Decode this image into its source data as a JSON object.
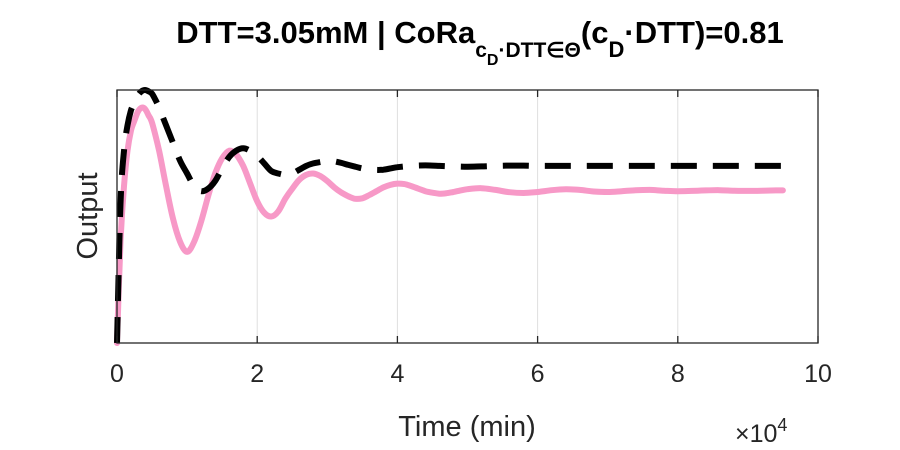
{
  "chart_data": {
    "type": "line",
    "title": {
      "main": "DTT=3.05mM | CoRa",
      "sub1": "c",
      "sub1_sub": "D",
      "sub2": "·DTT∈Θ",
      "mid": "(c",
      "mid_sub": "D",
      "tail": "·DTT)=0.81"
    },
    "xlabel": "Time (min)",
    "ylabel": "Output",
    "x_multiplier": {
      "times": "×10",
      "exponent": "4"
    },
    "xlim": [
      0,
      100000
    ],
    "ylim": [
      0,
      1.0
    ],
    "xticks": [
      0,
      20000,
      40000,
      60000,
      80000,
      100000
    ],
    "xtick_labels": [
      "0",
      "2",
      "4",
      "6",
      "8",
      "10"
    ],
    "grid_x": true,
    "grid_y": false,
    "colors": {
      "pink": "#F799C7",
      "black": "#000000",
      "grid": "#DFDFDF",
      "axis": "#262626"
    },
    "series": [
      {
        "style": "solid",
        "color": "#F799C7",
        "x": [
          0,
          500,
          1000,
          1500,
          2000,
          2500,
          3000,
          3500,
          4000,
          4500,
          5000,
          6000,
          7000,
          8000,
          9000,
          10000,
          11000,
          12000,
          13000,
          14000,
          15000,
          16000,
          17000,
          18000,
          19000,
          20000,
          21000,
          22000,
          23000,
          24000,
          25000,
          26000,
          27000,
          28000,
          29000,
          30000,
          31000,
          32000,
          33000,
          34000,
          35000,
          36000,
          37000,
          38000,
          39000,
          40000,
          41000,
          42000,
          43000,
          44000,
          45000,
          46000,
          47000,
          48000,
          49000,
          50000,
          52000,
          54000,
          56000,
          58000,
          60000,
          62000,
          64000,
          66000,
          68000,
          70000,
          72000,
          74000,
          76000,
          78000,
          80000,
          82000,
          84000,
          86000,
          88000,
          90000,
          92000,
          94000,
          95000
        ],
        "values": [
          0,
          0.4,
          0.62,
          0.76,
          0.84,
          0.88,
          0.915,
          0.93,
          0.925,
          0.9,
          0.87,
          0.76,
          0.62,
          0.49,
          0.4,
          0.36,
          0.4,
          0.48,
          0.58,
          0.67,
          0.73,
          0.76,
          0.745,
          0.7,
          0.63,
          0.56,
          0.515,
          0.5,
          0.52,
          0.57,
          0.61,
          0.645,
          0.665,
          0.67,
          0.66,
          0.64,
          0.615,
          0.595,
          0.58,
          0.57,
          0.572,
          0.585,
          0.6,
          0.615,
          0.625,
          0.63,
          0.628,
          0.62,
          0.61,
          0.6,
          0.594,
          0.59,
          0.592,
          0.597,
          0.603,
          0.608,
          0.612,
          0.605,
          0.596,
          0.593,
          0.597,
          0.604,
          0.608,
          0.605,
          0.599,
          0.597,
          0.6,
          0.604,
          0.605,
          0.602,
          0.6,
          0.601,
          0.603,
          0.604,
          0.602,
          0.601,
          0.602,
          0.603,
          0.603
        ]
      },
      {
        "style": "dashed",
        "color": "#000000",
        "x": [
          0,
          500,
          1000,
          1500,
          2000,
          2500,
          3000,
          3500,
          4000,
          4500,
          5000,
          5500,
          6000,
          7000,
          8000,
          9000,
          10000,
          11000,
          12000,
          13000,
          14000,
          15000,
          16000,
          17000,
          18000,
          19000,
          20000,
          21000,
          22000,
          23000,
          24000,
          25000,
          26000,
          27000,
          28000,
          29000,
          30000,
          31000,
          32000,
          33000,
          34000,
          35000,
          36000,
          37000,
          38000,
          39000,
          40000,
          42000,
          44000,
          46000,
          48000,
          50000,
          52000,
          54000,
          56000,
          58000,
          60000,
          62000,
          64000,
          66000,
          68000,
          70000,
          72000,
          74000,
          76000,
          78000,
          80000,
          82000,
          84000,
          86000,
          88000,
          90000,
          92000,
          94000,
          95000
        ],
        "values": [
          0,
          0.55,
          0.76,
          0.86,
          0.92,
          0.95,
          0.98,
          0.995,
          1.0,
          0.995,
          0.985,
          0.96,
          0.93,
          0.86,
          0.79,
          0.72,
          0.67,
          0.62,
          0.6,
          0.61,
          0.64,
          0.69,
          0.735,
          0.76,
          0.77,
          0.76,
          0.74,
          0.71,
          0.68,
          0.67,
          0.665,
          0.67,
          0.685,
          0.7,
          0.71,
          0.715,
          0.72,
          0.718,
          0.712,
          0.704,
          0.697,
          0.69,
          0.686,
          0.684,
          0.685,
          0.69,
          0.695,
          0.7,
          0.702,
          0.7,
          0.698,
          0.697,
          0.698,
          0.7,
          0.701,
          0.701,
          0.7,
          0.7,
          0.7,
          0.7,
          0.7,
          0.7,
          0.7,
          0.7,
          0.7,
          0.7,
          0.7,
          0.7,
          0.7,
          0.7,
          0.7,
          0.7,
          0.7,
          0.7,
          0.7
        ]
      }
    ]
  }
}
